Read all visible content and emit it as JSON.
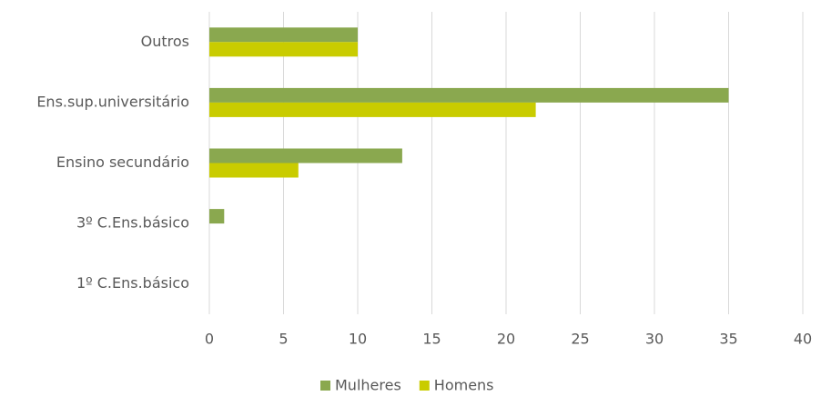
{
  "chart_data": {
    "type": "hbar",
    "categories": [
      "Outros",
      "Ens.sup.universitário",
      "Ensino secundário",
      "3º C.Ens.básico",
      "1º C.Ens.básico"
    ],
    "series": [
      {
        "name": "Mulheres",
        "color": "#8aa84f",
        "values": [
          10,
          35,
          13,
          1,
          0
        ]
      },
      {
        "name": "Homens",
        "color": "#c9cc00",
        "values": [
          10,
          22,
          6,
          0,
          0
        ]
      }
    ],
    "xlim": [
      0,
      40
    ],
    "xticks": [
      0,
      5,
      10,
      15,
      20,
      25,
      30,
      35,
      40
    ],
    "grid": true,
    "legend": "bottom"
  }
}
